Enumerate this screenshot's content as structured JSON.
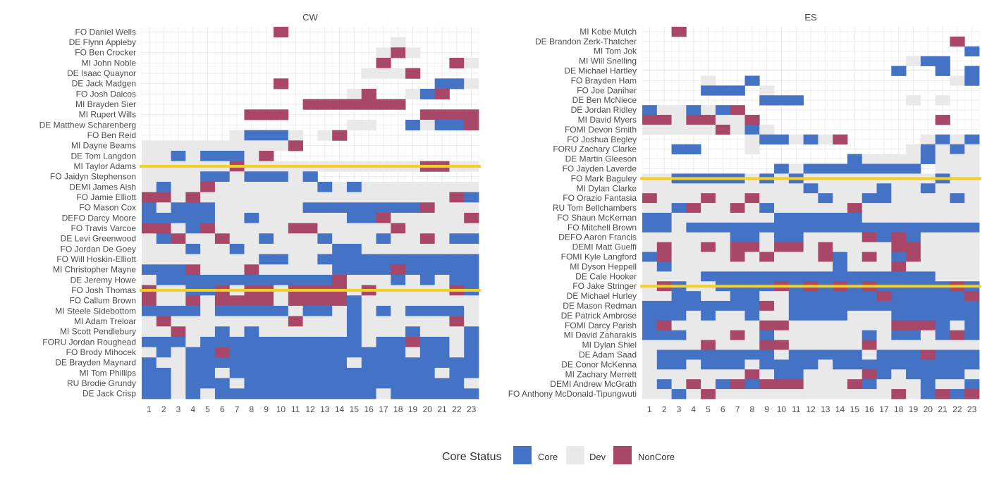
{
  "chart_data": {
    "type": "heatmap",
    "x": [
      1,
      2,
      3,
      4,
      5,
      6,
      7,
      8,
      9,
      10,
      11,
      12,
      13,
      14,
      15,
      16,
      17,
      18,
      19,
      20,
      21,
      22,
      23
    ],
    "legend": {
      "title": "Core Status",
      "position": "bottom",
      "categories": [
        {
          "key": "C",
          "label": "Core",
          "color": "#4472C4"
        },
        {
          "key": "D",
          "label": "Dev",
          "color": "#E9E9E9"
        },
        {
          "key": "N",
          "label": "NonCore",
          "color": "#A84767"
        }
      ]
    },
    "grid": true,
    "reference_line_color": "#F2D027",
    "panels": [
      {
        "title": "CW",
        "reference_lines_after_rows": [
          13,
          25
        ],
        "rows": [
          {
            "player": "FO Daniel Wells",
            "status": "_________N_____________"
          },
          {
            "player": "DE Flynn Appleby",
            "status": "_________________D_____"
          },
          {
            "player": "FO Ben Crocker",
            "status": "________________DND____"
          },
          {
            "player": "MI John Noble",
            "status": "________________N____ND"
          },
          {
            "player": "DE Isaac Quaynor",
            "status": "_______________DDDN____"
          },
          {
            "player": "DE Jack Madgen",
            "status": "_________N__________CCD"
          },
          {
            "player": "FO Josh Daicos",
            "status": "______________DN__DCN__"
          },
          {
            "player": "MI Brayden Sier",
            "status": "___________NNNNNNN_____"
          },
          {
            "player": "MI Rupert Wills",
            "status": "_______NNN_________NNNN"
          },
          {
            "player": "DE Matthew Scharenberg",
            "status": "______________DD__CDCCN"
          },
          {
            "player": "FO Ben Reid",
            "status": "______DCCCD_DN_________"
          },
          {
            "player": "MI Dayne Beams",
            "status": "DDDDDDDDDDN____________"
          },
          {
            "player": "DE Tom Langdon",
            "status": "DDCDCCCDN______________"
          },
          {
            "player": "MI Taylor Adams",
            "status": "DDDDDDNDDDDDDDDDDDDNNDD"
          },
          {
            "player": "FO Jaidyn Stephenson",
            "status": "DDDDCCDCCCDC___________"
          },
          {
            "player": "DEMI James Aish",
            "status": "DCDDNDDDDDDDCDCDDDDDDDD"
          },
          {
            "player": "FO Jamie Elliott",
            "status": "NNDNDDDDDDDDDDDDDDDDDNC"
          },
          {
            "player": "FO Mason Cox",
            "status": "CDCCCDDDDDDCCCCCCCCNDDD"
          },
          {
            "player": "DEFO Darcy Moore",
            "status": "CCCCCDDCDDDDDDCCNDDDDDN"
          },
          {
            "player": "FO Travis Varcoe",
            "status": "NNDCNDDDDDNNDDDDDNDDDDD"
          },
          {
            "player": "DE Levi Greenwood",
            "status": "DCNDDNDDCDDDCDDDCDDNDCC"
          },
          {
            "player": "FO Jordan De Goey",
            "status": "DDDCDDCDDDDDDCCDDDDDDDD"
          },
          {
            "player": "FO Will Hoskin-Elliott",
            "status": "DDDDDDDDCCDDCCCCCCCCCCC"
          },
          {
            "player": "MI Christopher Mayne",
            "status": "CCCNDDDNDDDDDCCCCNCCCCC"
          },
          {
            "player": "DE Jeremy Howe",
            "status": "DCCCCCCCCCCCCNDDDCDCDCC"
          },
          {
            "player": "FO Josh Thomas",
            "status": "NDDCCNDNNDNNNNDNDDDDDNC"
          },
          {
            "player": "FO Callum Brown",
            "status": "NDDNDNNNNDNNNNCDDDDDDDD"
          },
          {
            "player": "MI Steele Sidebottom",
            "status": "CCCCDCCCCCDCCDCDCDCCCCD"
          },
          {
            "player": "MI Adam Treloar",
            "status": "DNDDDDDDDDNDDDCDDDDDDND"
          },
          {
            "player": "MI Scott Pendlebury",
            "status": "DDNDDCDCDDDDDDCDDDCDDDC"
          },
          {
            "player": "FORU Jordan Roughead",
            "status": "CCCDCCCCCCCCCCCDCCNCCDC"
          },
          {
            "player": "FO Brody Mihocek",
            "status": "DCDCCNCCCCCCCCCCCCDCCDC"
          },
          {
            "player": "DE Brayden Maynard",
            "status": "CDDCCCCCCCCCCCDCCCCCCCC"
          },
          {
            "player": "MI Tom Phillips",
            "status": "CCDCCDCCCCCCCCCCCCCCDCC"
          },
          {
            "player": "RU Brodie Grundy",
            "status": "CCDCCCDCCCCCCCCCCCCCCCD"
          },
          {
            "player": "DE Jack Crisp",
            "status": "CCDCDCCCCCCCCCCCDCCCCCC"
          }
        ]
      },
      {
        "title": "ES",
        "reference_lines_after_rows": [
          15,
          26
        ],
        "rows": [
          {
            "player": "MI Kobe Mutch",
            "status": "__N____________________"
          },
          {
            "player": "DE Brandon Zerk-Thatcher",
            "status": "_____________________N_"
          },
          {
            "player": "MI Tom Jok",
            "status": "______________________C"
          },
          {
            "player": "MI Will Snelling",
            "status": "__________________DCC__"
          },
          {
            "player": "DE Michael Hartley",
            "status": "_________________C__C_C"
          },
          {
            "player": "FO Brayden Ham",
            "status": "____D__C_____________DC"
          },
          {
            "player": "FO Joe Daniher",
            "status": "____CCC_D______________"
          },
          {
            "player": "DE Ben McNiece",
            "status": "________CCC_______D_D__"
          },
          {
            "player": "DE Jordan Ridley",
            "status": "CDDCDCN________________"
          },
          {
            "player": "MI David Myers",
            "status": "NNDNNDDN____________N__"
          },
          {
            "player": "FOMI Devon Smith",
            "status": "DDDDDNDCD______________"
          },
          {
            "player": "FO Joshua Begley",
            "status": "_______DCCDCDN_____DCDC"
          },
          {
            "player": "FORU Zachary Clarke",
            "status": "__CC___D__________DCDCD"
          },
          {
            "player": "DE Martin Gleeson",
            "status": "______________CDDDDCDDD"
          },
          {
            "player": "FO Jayden Laverde",
            "status": "_________CDCCCCCCCC_DDD"
          },
          {
            "player": "FO Mark Baguley",
            "status": "DDCCCCCDCDCDDDDDDDDDCDD"
          },
          {
            "player": "MI Dylan Clarke",
            "status": "DDDDDDDDDDDCDDDDCDDCDDD"
          },
          {
            "player": "FO Orazio Fantasia",
            "status": "NDDDNDDNDDDDCDDCCDDDDCD"
          },
          {
            "player": "RU Tom Bellchambers",
            "status": "DDCNDDNDCDDDDDNDDDDDDDD"
          },
          {
            "player": "FO Shaun McKernan",
            "status": "CCDDDDDDDCCCCCCDDDDDDDD"
          },
          {
            "player": "FO Mitchell Brown",
            "status": "CCDCCCCCCCCCCCCCCCCCCCC"
          },
          {
            "player": "DEFO Aaron Francis",
            "status": "DDDDDDCCDCCDDDDNCNCDDDD"
          },
          {
            "player": "DEMI Matt Guelfi",
            "status": "DNDDNDNNDNNDNDDDDNNDDDD"
          },
          {
            "player": "FOMI Kyle Langford",
            "status": "CNDDDDNDNDDDNCDNDCNDDDD"
          },
          {
            "player": "MI Dyson Heppell",
            "status": "DCDDDDDDDDDDDCDDDNDDDDD"
          },
          {
            "player": "DE Cale Hooker",
            "status": "DDDDCCCCCCCCCCCCCCCCDDD"
          },
          {
            "player": "FO Jake Stringer",
            "status": "DNCDDCCCCNCNCNCNCCCCCNC"
          },
          {
            "player": "DE Michael Hurley",
            "status": "DDCCDDCCDDCCCCCCNCCCCCN"
          },
          {
            "player": "DE Mason Redman",
            "status": "CCCCCCCCNDCCCCCCCCCCCCC"
          },
          {
            "player": "DE Patrick Ambrose",
            "status": "CCCDCDDCDDCCCCDDDCCCCCC"
          },
          {
            "player": "FOMI Darcy Parish",
            "status": "CNDDDDDDNNDDDDDDDNNNCDC"
          },
          {
            "player": "MI David Zaharakis",
            "status": "CCCDDDNDCDDDDDDCDCCDCNC"
          },
          {
            "player": "MI Dylan Shiel",
            "status": "DDDDNDDDNNDDDDDNDDDDDDD"
          },
          {
            "player": "DE Adam Saad",
            "status": "DCCCCCCCCDCCCCCDCCCNCCC"
          },
          {
            "player": "DE Conor McKenna",
            "status": "DCCDCCCDCCCCDCCCCCCCCCC"
          },
          {
            "player": "MI Zachary Merrett",
            "status": "DDDDDDDNDCCDDDDNCDCCCCD"
          },
          {
            "player": "DEMI Andrew McGrath",
            "status": "DCDNDCNCNNNDDDNCDDDCDDC"
          },
          {
            "player": "FO Anthony McDonald-Tipungwuti",
            "status": "DDCDNDDDDDDDDDDDDNDCNCN"
          }
        ]
      }
    ]
  }
}
